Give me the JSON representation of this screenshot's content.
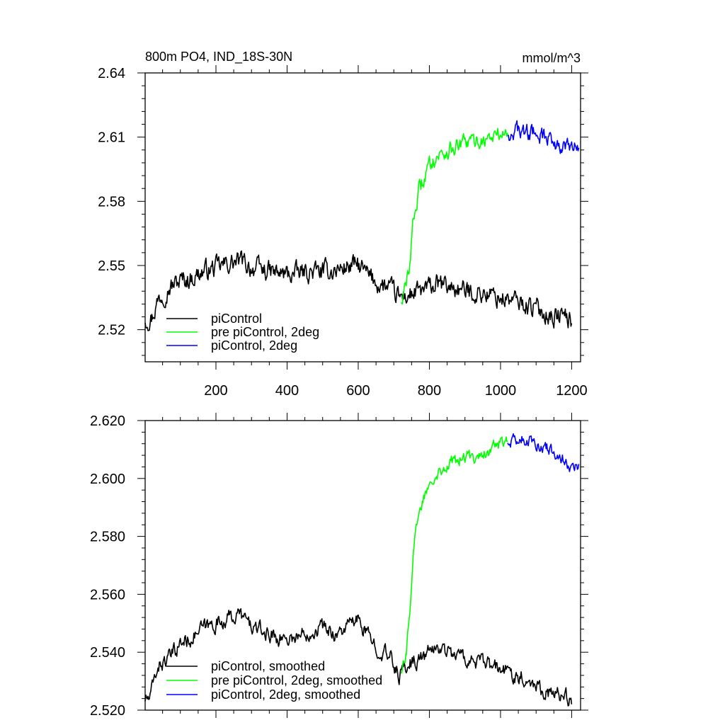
{
  "chart_data": [
    {
      "type": "line",
      "title": "800m PO4, IND_18S-30N",
      "units": "mmol/m^3",
      "xlabel": "",
      "ylabel": "",
      "xlim": [
        1,
        1225
      ],
      "ylim": [
        2.505,
        2.64
      ],
      "xticks": [
        200,
        400,
        600,
        800,
        1000,
        1200
      ],
      "xtick_labels": [
        "200",
        "400",
        "600",
        "800",
        "1000",
        "1200"
      ],
      "yticks": [
        2.52,
        2.55,
        2.58,
        2.61,
        2.64
      ],
      "ytick_labels": [
        "2.52",
        "2.55",
        "2.58",
        "2.61",
        "2.64"
      ],
      "grid": false,
      "legend_position": "bottom-left",
      "series": [
        {
          "name": "piControl",
          "color": "#000000",
          "noise": 0.0038,
          "points": [
            [
              1,
              2.525
            ],
            [
              20,
              2.526
            ],
            [
              40,
              2.535
            ],
            [
              70,
              2.54
            ],
            [
              100,
              2.543
            ],
            [
              130,
              2.544
            ],
            [
              160,
              2.547
            ],
            [
              200,
              2.549
            ],
            [
              240,
              2.551
            ],
            [
              270,
              2.552
            ],
            [
              300,
              2.549
            ],
            [
              330,
              2.548
            ],
            [
              380,
              2.546
            ],
            [
              420,
              2.546
            ],
            [
              460,
              2.547
            ],
            [
              500,
              2.547
            ],
            [
              540,
              2.548
            ],
            [
              580,
              2.55
            ],
            [
              600,
              2.55
            ],
            [
              630,
              2.545
            ],
            [
              660,
              2.541
            ],
            [
              690,
              2.539
            ],
            [
              715,
              2.535
            ],
            [
              740,
              2.536
            ],
            [
              780,
              2.538
            ],
            [
              820,
              2.541
            ],
            [
              860,
              2.54
            ],
            [
              900,
              2.538
            ],
            [
              950,
              2.537
            ],
            [
              1000,
              2.535
            ],
            [
              1050,
              2.533
            ],
            [
              1100,
              2.53
            ],
            [
              1150,
              2.526
            ],
            [
              1180,
              2.527
            ],
            [
              1200,
              2.523
            ]
          ]
        },
        {
          "name": "pre piControl, 2deg",
          "color": "#00ff00",
          "noise": 0.0032,
          "points": [
            [
              720,
              2.534
            ],
            [
              735,
              2.54
            ],
            [
              745,
              2.552
            ],
            [
              755,
              2.572
            ],
            [
              770,
              2.584
            ],
            [
              790,
              2.593
            ],
            [
              810,
              2.6
            ],
            [
              840,
              2.603
            ],
            [
              870,
              2.605
            ],
            [
              900,
              2.607
            ],
            [
              930,
              2.608
            ],
            [
              960,
              2.609
            ],
            [
              990,
              2.611
            ],
            [
              1020,
              2.612
            ]
          ]
        },
        {
          "name": "piControl, 2deg",
          "color": "#0000ff",
          "noise": 0.0032,
          "points": [
            [
              1020,
              2.612
            ],
            [
              1050,
              2.613
            ],
            [
              1080,
              2.612
            ],
            [
              1110,
              2.611
            ],
            [
              1140,
              2.609
            ],
            [
              1170,
              2.606
            ],
            [
              1200,
              2.604
            ],
            [
              1220,
              2.605
            ]
          ]
        }
      ]
    },
    {
      "type": "line",
      "title": "",
      "xlabel": "",
      "ylabel": "",
      "xlim": [
        1,
        1225
      ],
      "ylim": [
        2.52,
        2.62
      ],
      "xticks": [
        200,
        400,
        600,
        800,
        1000,
        1200
      ],
      "xtick_labels": [],
      "yticks": [
        2.52,
        2.54,
        2.56,
        2.58,
        2.6,
        2.62
      ],
      "ytick_labels": [
        "2.520",
        "2.540",
        "2.560",
        "2.580",
        "2.600",
        "2.620"
      ],
      "grid": false,
      "legend_position": "bottom-left",
      "series": [
        {
          "name": "piControl, smoothed",
          "color": "#000000",
          "noise": 0.0022,
          "points": [
            [
              1,
              2.524
            ],
            [
              15,
              2.524
            ],
            [
              35,
              2.535
            ],
            [
              70,
              2.538
            ],
            [
              100,
              2.543
            ],
            [
              130,
              2.545
            ],
            [
              160,
              2.548
            ],
            [
              200,
              2.55
            ],
            [
              240,
              2.552
            ],
            [
              270,
              2.553
            ],
            [
              300,
              2.549
            ],
            [
              330,
              2.547
            ],
            [
              380,
              2.545
            ],
            [
              420,
              2.545
            ],
            [
              460,
              2.547
            ],
            [
              500,
              2.549
            ],
            [
              540,
              2.546
            ],
            [
              580,
              2.55
            ],
            [
              600,
              2.551
            ],
            [
              630,
              2.545
            ],
            [
              660,
              2.541
            ],
            [
              690,
              2.538
            ],
            [
              715,
              2.532
            ],
            [
              740,
              2.536
            ],
            [
              780,
              2.538
            ],
            [
              820,
              2.542
            ],
            [
              860,
              2.54
            ],
            [
              900,
              2.538
            ],
            [
              950,
              2.536
            ],
            [
              1000,
              2.534
            ],
            [
              1050,
              2.532
            ],
            [
              1100,
              2.529
            ],
            [
              1150,
              2.525
            ],
            [
              1180,
              2.526
            ],
            [
              1200,
              2.522
            ]
          ]
        },
        {
          "name": "pre piControl, 2deg, smoothed",
          "color": "#00ff00",
          "noise": 0.0018,
          "points": [
            [
              720,
              2.534
            ],
            [
              735,
              2.54
            ],
            [
              745,
              2.555
            ],
            [
              755,
              2.575
            ],
            [
              770,
              2.587
            ],
            [
              790,
              2.596
            ],
            [
              810,
              2.601
            ],
            [
              840,
              2.604
            ],
            [
              870,
              2.606
            ],
            [
              900,
              2.607
            ],
            [
              930,
              2.608
            ],
            [
              960,
              2.609
            ],
            [
              990,
              2.612
            ],
            [
              1020,
              2.613
            ]
          ]
        },
        {
          "name": "piControl, 2deg, smoothed",
          "color": "#0000ff",
          "noise": 0.0018,
          "points": [
            [
              1020,
              2.613
            ],
            [
              1050,
              2.614
            ],
            [
              1080,
              2.613
            ],
            [
              1110,
              2.612
            ],
            [
              1140,
              2.61
            ],
            [
              1170,
              2.607
            ],
            [
              1200,
              2.604
            ],
            [
              1220,
              2.605
            ]
          ]
        }
      ]
    }
  ]
}
